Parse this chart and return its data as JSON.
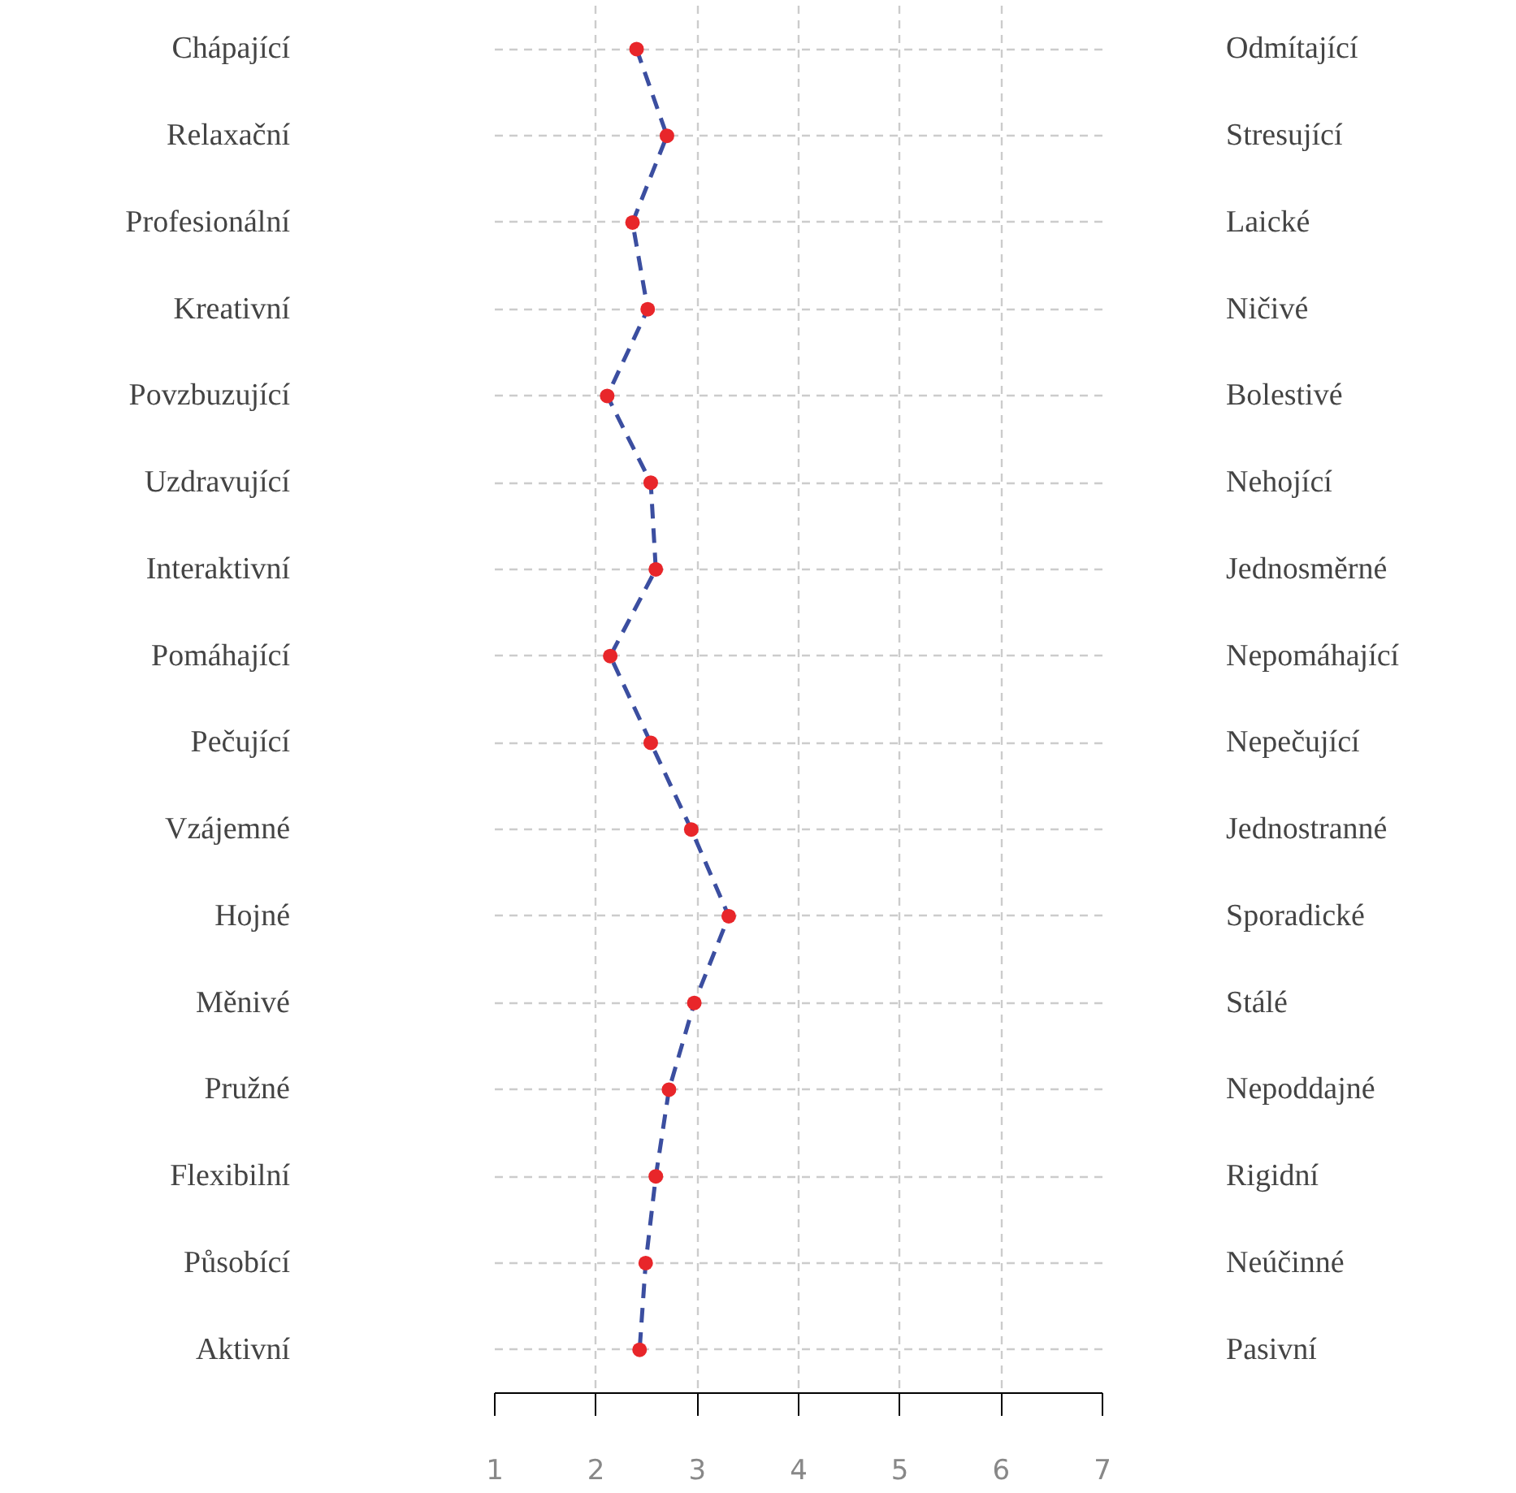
{
  "chart_data": {
    "type": "line",
    "orientation": "horizontal",
    "categories": [
      "Chápající",
      "Relaxační",
      "Profesionální",
      "Kreativní",
      "Povzbuzující",
      "Uzdravující",
      "Interaktivní",
      "Pomáhající",
      "Pečující",
      "Vzájemné",
      "Hojné",
      "Měnivé",
      "Pružné",
      "Flexibilní",
      "Působící",
      "Aktivní"
    ],
    "y2_categories": [
      "Odmítající",
      "Stresující",
      "Laické",
      "Ničivé",
      "Bolestivé",
      "Nehojící",
      "Jednosměrné",
      "Nepomáhající",
      "Nepečující",
      "Jednostranné",
      "Sporadické",
      "Stálé",
      "Nepoddajné",
      "Rigidní",
      "Neúčinné",
      "Pasivní"
    ],
    "series": [
      {
        "color": "#3b4ea0",
        "colors": [
          "#e8262a",
          "#e8262a",
          "#e8262a",
          "#e8262a",
          "#e8262a",
          "#e8262a",
          "#e8262a",
          "#e8262a",
          "#e8262a",
          "#e8262a",
          "#e8262a",
          "#e8262a",
          "#e8262a",
          "#e8262a",
          "#e8262a",
          "#e8262a"
        ],
        "values": [
          2.4,
          2.7,
          2.36,
          2.51,
          2.11,
          2.54,
          2.59,
          2.14,
          2.54,
          2.94,
          3.31,
          2.97,
          2.72,
          2.59,
          2.49,
          2.43
        ]
      }
    ],
    "xlim": [
      1,
      7
    ],
    "xticks": [
      1,
      2,
      3,
      4,
      5,
      6,
      7
    ],
    "grid": true,
    "marker": "circle",
    "line_style": "dashed"
  }
}
